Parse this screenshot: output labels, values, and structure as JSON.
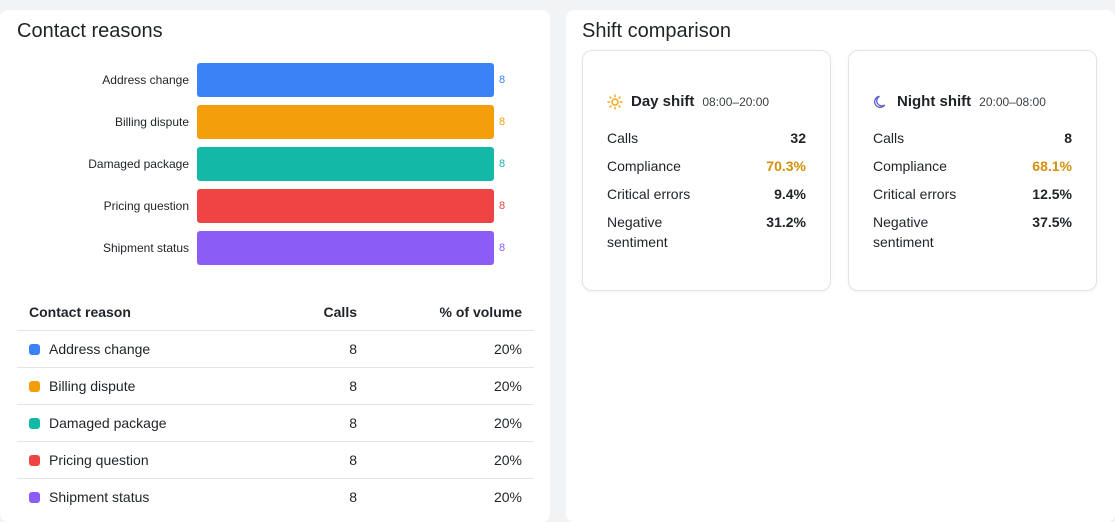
{
  "contact_reasons": {
    "title": "Contact reasons",
    "chart_data": {
      "type": "bar",
      "orientation": "horizontal",
      "categories": [
        "Address change",
        "Billing dispute",
        "Damaged package",
        "Pricing question",
        "Shipment status"
      ],
      "values": [
        8,
        8,
        8,
        8,
        8
      ],
      "colors": [
        "#3b82f6",
        "#f59e0b",
        "#14b8a6",
        "#ef4444",
        "#8b5cf6"
      ],
      "xlim": [
        0,
        8
      ]
    },
    "table": {
      "headers": [
        "Contact reason",
        "Calls",
        "% of volume"
      ],
      "rows": [
        {
          "name": "Address change",
          "calls": "8",
          "pct": "20%",
          "color": "#3b82f6"
        },
        {
          "name": "Billing dispute",
          "calls": "8",
          "pct": "20%",
          "color": "#f59e0b"
        },
        {
          "name": "Damaged package",
          "calls": "8",
          "pct": "20%",
          "color": "#14b8a6"
        },
        {
          "name": "Pricing question",
          "calls": "8",
          "pct": "20%",
          "color": "#ef4444"
        },
        {
          "name": "Shipment status",
          "calls": "8",
          "pct": "20%",
          "color": "#8b5cf6"
        }
      ]
    }
  },
  "shift_comparison": {
    "title": "Shift comparison",
    "day": {
      "icon": "sun-icon",
      "title": "Day shift",
      "hours": "08:00–20:00",
      "metrics": [
        {
          "label": "Calls",
          "value": "32",
          "highlight": false
        },
        {
          "label": "Compliance",
          "value": "70.3%",
          "highlight": true
        },
        {
          "label": "Critical errors",
          "value": "9.4%",
          "highlight": false
        },
        {
          "label": "Negative sentiment",
          "value": "31.2%",
          "highlight": false
        }
      ]
    },
    "night": {
      "icon": "moon-icon",
      "title": "Night shift",
      "hours": "20:00–08:00",
      "metrics": [
        {
          "label": "Calls",
          "value": "8",
          "highlight": false
        },
        {
          "label": "Compliance",
          "value": "68.1%",
          "highlight": true
        },
        {
          "label": "Critical errors",
          "value": "12.5%",
          "highlight": false
        },
        {
          "label": "Negative sentiment",
          "value": "37.5%",
          "highlight": false
        }
      ]
    },
    "colors": {
      "highlight": "#d4900a",
      "sun": "#f2a516",
      "moon": "#5b5fc7"
    }
  }
}
